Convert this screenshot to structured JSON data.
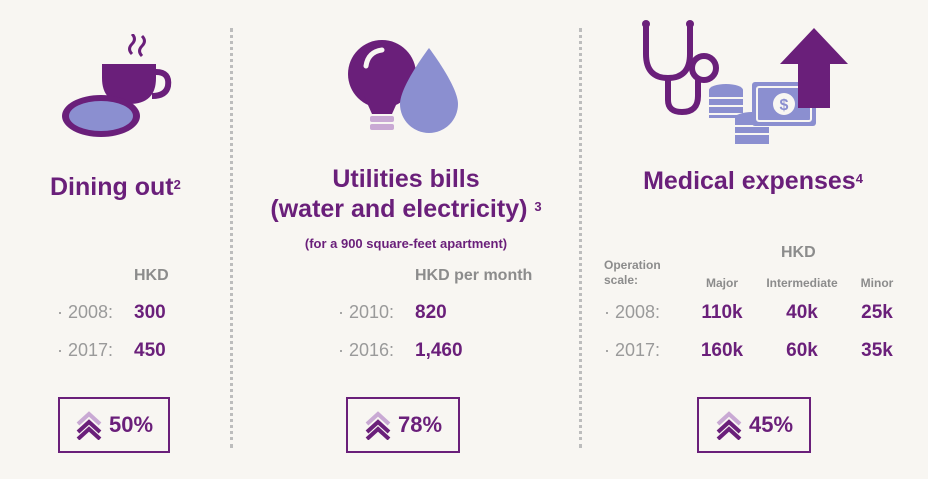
{
  "dining": {
    "title": "Dining out",
    "note": "2",
    "unit": "HKD",
    "rows": [
      {
        "year": "· 2008:",
        "value": "300"
      },
      {
        "year": "· 2017:",
        "value": "450"
      }
    ],
    "increase": "50%"
  },
  "utilities": {
    "title_line1": "Utilities bills",
    "title_line2": "(water and electricity)",
    "note": "3",
    "subtitle": "(for a 900 square-feet apartment)",
    "unit": "HKD per month",
    "rows": [
      {
        "year": "· 2010:",
        "value": "820"
      },
      {
        "year": "· 2016:",
        "value": "1,460"
      }
    ],
    "increase": "78%"
  },
  "medical": {
    "title": "Medical expenses",
    "note": "4",
    "unit": "HKD",
    "scale_label": "Operation scale:",
    "columns": [
      "Major",
      "Intermediate",
      "Minor"
    ],
    "rows": [
      {
        "year": "· 2008:",
        "values": [
          "110k",
          "40k",
          "25k"
        ]
      },
      {
        "year": "· 2017:",
        "values": [
          "160k",
          "60k",
          "35k"
        ]
      }
    ],
    "increase": "45%"
  },
  "colors": {
    "primary": "#6a1f7a",
    "secondary": "#8b8fd0",
    "light": "#c9a9d4",
    "muted": "#9a9a9a"
  },
  "icons": [
    "coffee-cup-icon",
    "plate-icon",
    "light-bulb-icon",
    "water-drop-icon",
    "stethoscope-icon",
    "coins-icon",
    "banknote-icon",
    "up-arrow-icon",
    "double-chevron-up-icon"
  ]
}
